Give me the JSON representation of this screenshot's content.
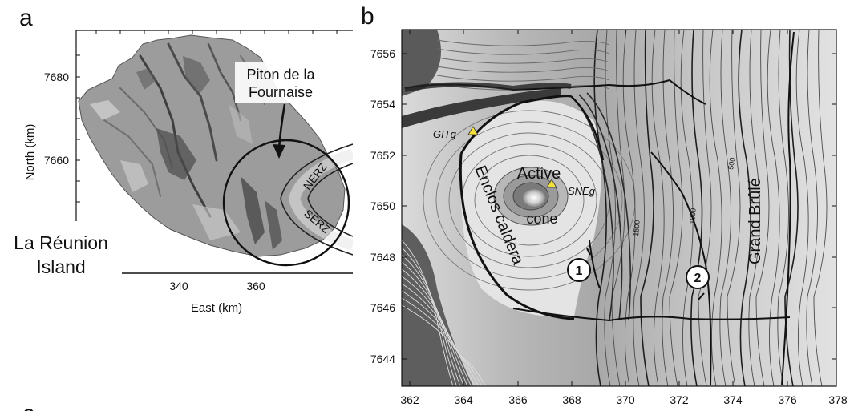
{
  "panel_a": {
    "label": "a",
    "island_name_line1": "La Réunion",
    "island_name_line2": "Island",
    "volcano_line1": "Piton de la",
    "volcano_line2": "Fournaise",
    "rift_zone_north": "NERZ",
    "rift_zone_south": "SERZ",
    "x_axis_label": "East (km)",
    "y_axis_label": "North (km)",
    "x_ticks": [
      "340",
      "360"
    ],
    "y_ticks": [
      "7680",
      "7660"
    ]
  },
  "panel_b": {
    "label": "b",
    "station_1": "GITg",
    "station_2": "SNEg",
    "active_cone_line1": "Active",
    "active_cone_line2": "cone",
    "caldera": "Enclos caldera",
    "slope_region": "Grand Brûlé",
    "marker_1": "1",
    "marker_2": "2",
    "contour_1500": "1500",
    "contour_1000": "1000",
    "contour_500": "500",
    "x_ticks": [
      "362",
      "364",
      "366",
      "368",
      "370",
      "372",
      "374",
      "376",
      "378"
    ],
    "y_ticks": [
      "7656",
      "7654",
      "7652",
      "7650",
      "7648",
      "7646",
      "7644"
    ],
    "station_color": "#f3e03a"
  },
  "next_panel_label": "c"
}
